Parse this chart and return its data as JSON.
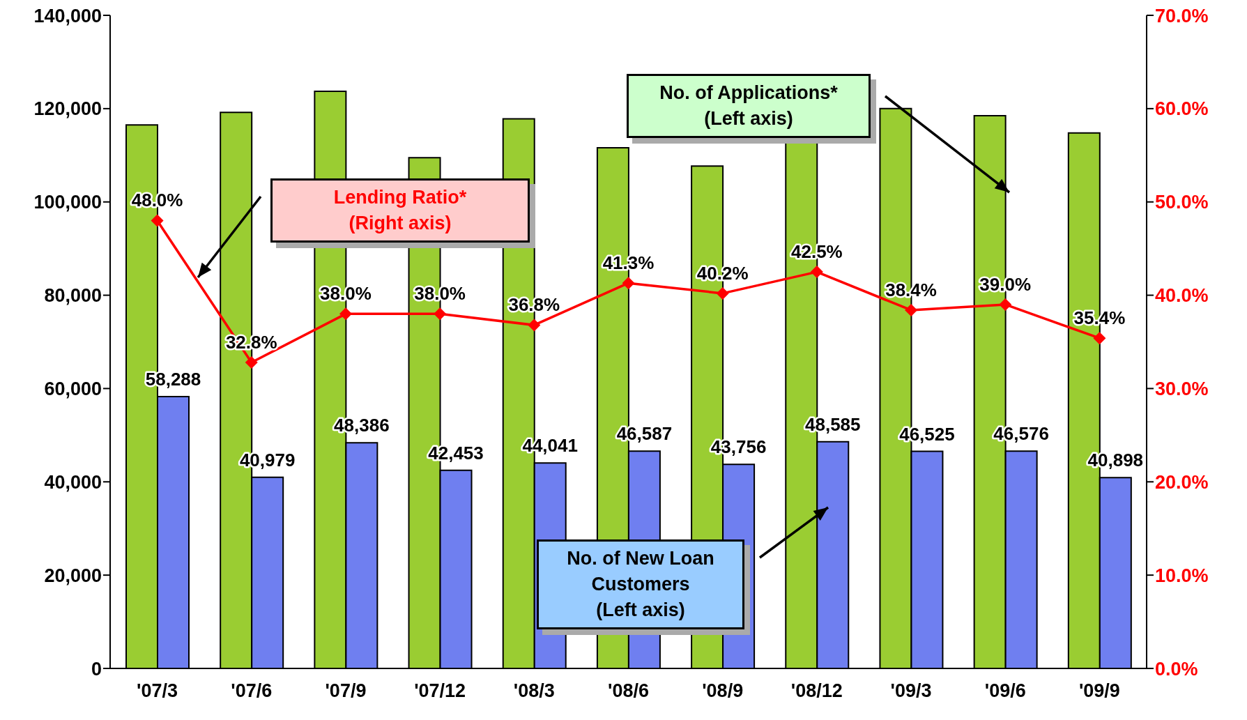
{
  "chart_data": {
    "type": "bar",
    "categories": [
      "'07/3",
      "'07/6",
      "'07/9",
      "'07/12",
      "'08/3",
      "'08/6",
      "'08/9",
      "'08/12",
      "'09/3",
      "'09/6",
      "'09/9"
    ],
    "series": [
      {
        "name": "No. of Applications*\n(Left axis)",
        "color": "#9acd32",
        "values": [
          116500,
          119200,
          123700,
          109500,
          117800,
          111600,
          107700,
          113000,
          120000,
          118500,
          114800
        ]
      },
      {
        "name": "No. of New Loan\nCustomers\n(Left axis)",
        "color": "#6f7ff0",
        "values": [
          58288,
          40979,
          48386,
          42453,
          44041,
          46587,
          43756,
          48585,
          46525,
          46576,
          40898
        ],
        "value_labels": [
          "58,288",
          "40,979",
          "48,386",
          "42,453",
          "44,041",
          "46,587",
          "43,756",
          "48,585",
          "46,525",
          "46,576",
          "40,898"
        ]
      },
      {
        "name": "Lending Ratio*\n(Right axis)",
        "type": "line",
        "axis": "y2",
        "color": "#ff0000",
        "values": [
          48.0,
          32.8,
          38.0,
          38.0,
          36.8,
          41.3,
          40.2,
          42.5,
          38.4,
          39.0,
          35.4
        ],
        "value_labels": [
          "48.0%",
          "32.8%",
          "38.0%",
          "38.0%",
          "36.8%",
          "41.3%",
          "40.2%",
          "42.5%",
          "38.4%",
          "39.0%",
          "35.4%"
        ]
      }
    ],
    "ylim": [
      0,
      140000
    ],
    "yticks": [
      {
        "value": 0,
        "label": "0"
      },
      {
        "value": 20000,
        "label": "20,000"
      },
      {
        "value": 40000,
        "label": "40,000"
      },
      {
        "value": 60000,
        "label": "60,000"
      },
      {
        "value": 80000,
        "label": "80,000"
      },
      {
        "value": 100000,
        "label": "100,000"
      },
      {
        "value": 120000,
        "label": "120,000"
      },
      {
        "value": 140000,
        "label": "140,000"
      }
    ],
    "y2lim": [
      0,
      70
    ],
    "y2ticks": [
      {
        "value": 0,
        "label": "0.0%"
      },
      {
        "value": 10,
        "label": "10.0%"
      },
      {
        "value": 20,
        "label": "20.0%"
      },
      {
        "value": 30,
        "label": "30.0%"
      },
      {
        "value": 40,
        "label": "40.0%"
      },
      {
        "value": 50,
        "label": "50.0%"
      },
      {
        "value": 60,
        "label": "60.0%"
      },
      {
        "value": 70,
        "label": "70.0%"
      }
    ],
    "grid": false,
    "legend": false,
    "marker": "diamond",
    "line_style": "solid"
  }
}
